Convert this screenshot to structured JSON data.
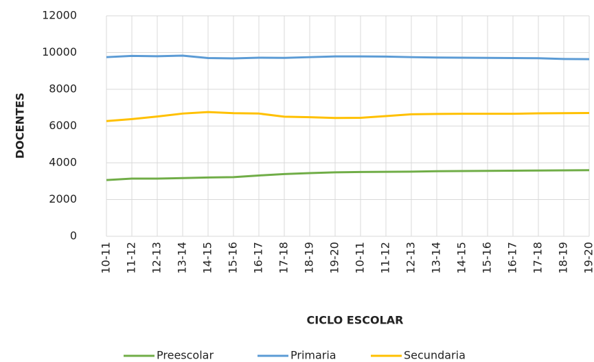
{
  "chart_data": {
    "type": "line",
    "x_label": "CICLO ESCOLAR",
    "y_label": "DOCENTES",
    "categories": [
      "10-11",
      "11-12",
      "12-13",
      "13-14",
      "14-15",
      "15-16",
      "16-17",
      "17-18",
      "18-19",
      "19-20",
      "10-11",
      "11-12",
      "12-13",
      "13-14",
      "14-15",
      "15-16",
      "16-17",
      "17-18",
      "18-19",
      "19-20"
    ],
    "series": [
      {
        "name": "Preescolar",
        "color": "#70ad47",
        "values": [
          3060,
          3140,
          3140,
          3170,
          3200,
          3220,
          3310,
          3390,
          3440,
          3480,
          3500,
          3510,
          3520,
          3540,
          3550,
          3560,
          3570,
          3580,
          3590,
          3600
        ]
      },
      {
        "name": "Primaria",
        "color": "#5b9bd5",
        "values": [
          9750,
          9820,
          9800,
          9830,
          9700,
          9680,
          9720,
          9710,
          9750,
          9790,
          9790,
          9780,
          9750,
          9730,
          9720,
          9710,
          9700,
          9690,
          9650,
          9640
        ]
      },
      {
        "name": "Secundaria",
        "color": "#ffc000",
        "values": [
          6270,
          6380,
          6520,
          6680,
          6760,
          6700,
          6680,
          6510,
          6480,
          6440,
          6450,
          6540,
          6640,
          6660,
          6670,
          6670,
          6670,
          6690,
          6700,
          6710
        ]
      }
    ],
    "ylim": [
      0,
      12000
    ],
    "yticks": [
      0,
      2000,
      4000,
      6000,
      8000,
      10000,
      12000
    ],
    "grid": true,
    "legend": "bottom"
  }
}
